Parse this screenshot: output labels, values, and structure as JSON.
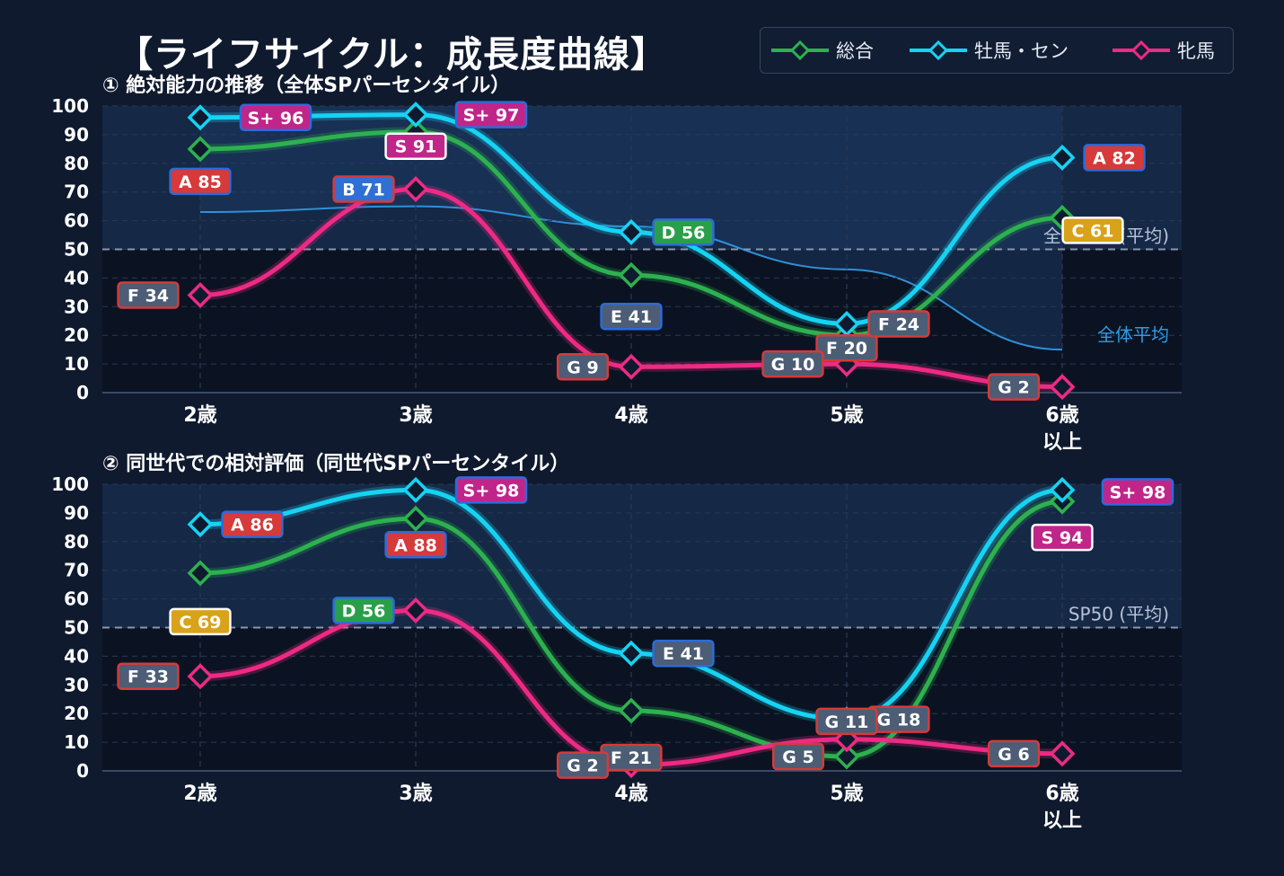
{
  "title": "【ライフサイクル：成長度曲線】",
  "legend": [
    {
      "name": "総合",
      "color": "#2db14f"
    },
    {
      "name": "牡馬・セン",
      "color": "#16d3f3"
    },
    {
      "name": "牝馬",
      "color": "#ee2a85"
    }
  ],
  "chart_data": [
    {
      "type": "line",
      "title": "① 絶対能力の推移（全体SPパーセンタイル）",
      "categories": [
        "2歳",
        "3歳",
        "4歳",
        "5歳",
        "6歳\n以上"
      ],
      "ylim": [
        0,
        100
      ],
      "yticks": [
        0,
        10,
        20,
        30,
        40,
        50,
        60,
        70,
        80,
        90,
        100
      ],
      "grid": true,
      "series": [
        {
          "name": "総合",
          "color": "#2db14f",
          "values": [
            85,
            91,
            41,
            20,
            61
          ],
          "labels": [
            "A 85",
            "S 91",
            "E 41",
            "F 20",
            "C 61"
          ]
        },
        {
          "name": "牡馬・セン",
          "color": "#16d3f3",
          "values": [
            96,
            97,
            56,
            24,
            82
          ],
          "labels": [
            "S+ 96",
            "S+ 97",
            "D 56",
            "F 24",
            "A 82"
          ]
        },
        {
          "name": "牝馬",
          "color": "#ee2a85",
          "values": [
            34,
            71,
            9,
            10,
            2
          ],
          "labels": [
            "F 34",
            "B 71",
            "G 9",
            "G 10",
            "G 2"
          ]
        }
      ],
      "reference_lines": [
        {
          "label": "全体50%(平均)",
          "value": 50,
          "style": "dashed",
          "color": "#b8c2d6"
        }
      ],
      "average_curve": {
        "label": "全体平均",
        "color": "#2f8fd8",
        "values": [
          63,
          65,
          58,
          43,
          15
        ]
      }
    },
    {
      "type": "line",
      "title": "② 同世代での相対評価（同世代SPパーセンタイル）",
      "categories": [
        "2歳",
        "3歳",
        "4歳",
        "5歳",
        "6歳\n以上"
      ],
      "ylim": [
        0,
        100
      ],
      "yticks": [
        0,
        10,
        20,
        30,
        40,
        50,
        60,
        70,
        80,
        90,
        100
      ],
      "grid": true,
      "series": [
        {
          "name": "総合",
          "color": "#2db14f",
          "values": [
            69,
            88,
            21,
            5,
            94
          ],
          "labels": [
            "C 69",
            "A 88",
            "F 21",
            "G 5",
            "S 94"
          ]
        },
        {
          "name": "牡馬・セン",
          "color": "#16d3f3",
          "values": [
            86,
            98,
            41,
            18,
            98
          ],
          "labels": [
            "A 86",
            "S+ 98",
            "E 41",
            "G 18",
            "S+ 98"
          ]
        },
        {
          "name": "牝馬",
          "color": "#ee2a85",
          "values": [
            33,
            56,
            2,
            11,
            6
          ],
          "labels": [
            "F 33",
            "D 56",
            "G 2",
            "G 11",
            "G 6"
          ]
        }
      ],
      "reference_lines": [
        {
          "label": "SP50 (平均)",
          "value": 50,
          "style": "dashed",
          "color": "#b8c2d6"
        }
      ]
    }
  ]
}
